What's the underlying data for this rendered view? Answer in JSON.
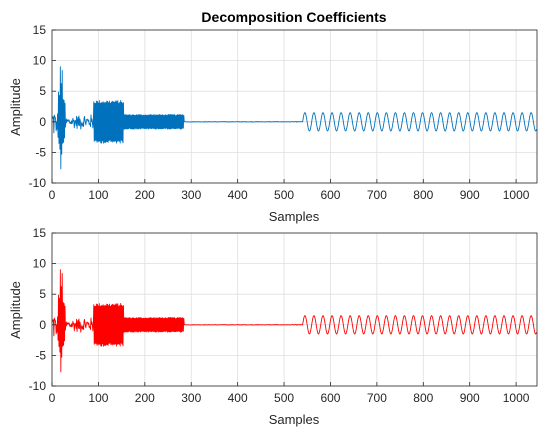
{
  "chart_data": [
    {
      "type": "line",
      "title": "Decomposition Coefficients",
      "xlabel": "Samples",
      "ylabel": "Amplitude",
      "xlim": [
        0,
        1045
      ],
      "ylim": [
        -10,
        15
      ],
      "xticks": [
        0,
        100,
        200,
        300,
        400,
        500,
        600,
        700,
        800,
        900,
        1000
      ],
      "yticks": [
        -10,
        -5,
        0,
        5,
        10,
        15
      ],
      "grid": true,
      "series": [
        {
          "color": "#0072BD",
          "segments": [
            {
              "x_start": 1,
              "x_end": 10,
              "pattern": "noise",
              "amplitude": 3
            },
            {
              "x_start": 10,
              "x_end": 30,
              "pattern": "burst",
              "min": -8.5,
              "max": 10
            },
            {
              "x_start": 30,
              "x_end": 90,
              "pattern": "noise",
              "amplitude": 1.5
            },
            {
              "x_start": 90,
              "x_end": 155,
              "pattern": "dense",
              "amplitude": 3.5
            },
            {
              "x_start": 155,
              "x_end": 285,
              "pattern": "dense",
              "amplitude": 1.2
            },
            {
              "x_start": 285,
              "x_end": 540,
              "pattern": "flat",
              "value": 0
            },
            {
              "x_start": 540,
              "x_end": 1045,
              "pattern": "sine",
              "amplitude": 1.5,
              "period": 19.5
            }
          ]
        }
      ]
    },
    {
      "type": "line",
      "title": "",
      "xlabel": "Samples",
      "ylabel": "Amplitude",
      "xlim": [
        0,
        1045
      ],
      "ylim": [
        -10,
        15
      ],
      "xticks": [
        0,
        100,
        200,
        300,
        400,
        500,
        600,
        700,
        800,
        900,
        1000
      ],
      "yticks": [
        -10,
        -5,
        0,
        5,
        10,
        15
      ],
      "grid": true,
      "series": [
        {
          "color": "#FF0000",
          "segments": [
            {
              "x_start": 1,
              "x_end": 10,
              "pattern": "noise",
              "amplitude": 3
            },
            {
              "x_start": 10,
              "x_end": 30,
              "pattern": "burst",
              "min": -8.5,
              "max": 10
            },
            {
              "x_start": 30,
              "x_end": 90,
              "pattern": "noise",
              "amplitude": 1.5
            },
            {
              "x_start": 90,
              "x_end": 155,
              "pattern": "dense",
              "amplitude": 3.5
            },
            {
              "x_start": 155,
              "x_end": 285,
              "pattern": "dense",
              "amplitude": 1.2
            },
            {
              "x_start": 285,
              "x_end": 540,
              "pattern": "flat",
              "value": 0
            },
            {
              "x_start": 540,
              "x_end": 1045,
              "pattern": "sine",
              "amplitude": 1.5,
              "period": 19.5
            }
          ]
        }
      ]
    }
  ]
}
